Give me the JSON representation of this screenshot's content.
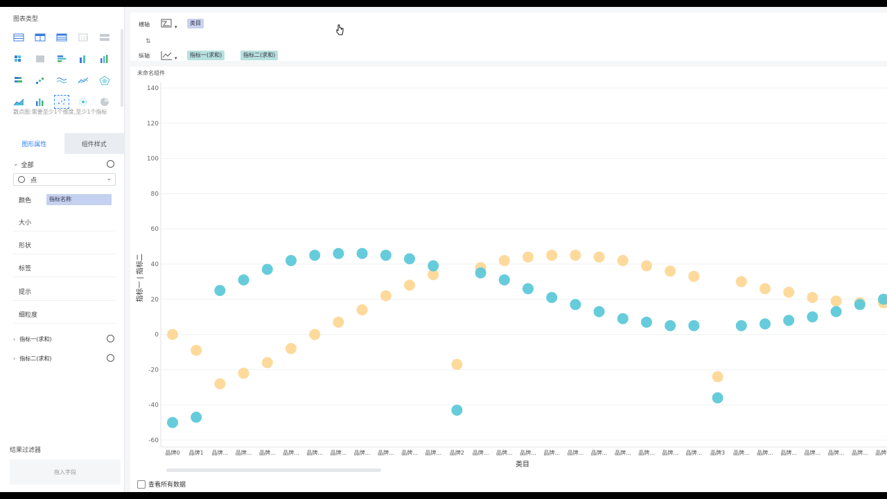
{
  "left_panel": {
    "chart_types_title": "图表类型",
    "chart_type_icons": [
      "table-icon",
      "crosstab-icon",
      "detail-table-icon",
      "kpi-icon",
      "card-icon",
      "heatmap-table-icon",
      "color-table-icon",
      "grouped-bar-icon",
      "column-icon",
      "multi-column-icon",
      "stacked-bar-icon",
      "step-line-icon",
      "wave-line-icon",
      "line-icon",
      "radar-icon",
      "area-icon",
      "combo-column-icon",
      "scatter-icon",
      "dot-cloud-icon",
      "pie-icon"
    ],
    "active_chart_type": "scatter-icon",
    "type_tip": "散点图:需要至少1个维度,至少1个指标",
    "tabs": [
      "图形属性",
      "组件样式"
    ],
    "all_label": "全部",
    "mark_type": "点",
    "color_label": "颜色",
    "color_field": "指标名称",
    "props": [
      "大小",
      "形状",
      "标签",
      "提示",
      "细粒度"
    ],
    "measures": [
      "指标一(求和)",
      "指标二(求和)"
    ],
    "filter_title": "结果过滤器",
    "drop_hint": "拖入字段"
  },
  "shelves": {
    "x_label": "横轴",
    "y_label": "纵轴",
    "x_field": "类目",
    "y_fields": [
      "指标一(求和)",
      "指标二(求和)"
    ]
  },
  "chart_card": {
    "title": "未命名组件",
    "show_all_label": "查看所有数据"
  },
  "colors": {
    "series1": "#5ec9d9",
    "series2": "#fdd897",
    "accent": "#3685f2"
  },
  "chart_data": {
    "type": "scatter",
    "title": "",
    "xlabel": "类目",
    "ylabel": "指标一 | 指标二",
    "ylim": [
      -60,
      140
    ],
    "yticks": [
      140,
      120,
      100,
      80,
      60,
      40,
      20,
      0,
      -20,
      -40,
      -60
    ],
    "categories": [
      "品牌0",
      "品牌1",
      "品牌...",
      "品牌...",
      "品牌...",
      "品牌...",
      "品牌...",
      "品牌...",
      "品牌...",
      "品牌...",
      "品牌...",
      "品牌...",
      "品牌2",
      "品牌...",
      "品牌...",
      "品牌...",
      "品牌...",
      "品牌...",
      "品牌...",
      "品牌...",
      "品牌...",
      "品牌...",
      "品牌...",
      "品牌3",
      "品牌...",
      "品牌...",
      "品牌...",
      "品牌...",
      "品牌...",
      "品牌...",
      "品牌..."
    ],
    "series": [
      {
        "name": "指标一(求和)",
        "values": [
          -50,
          -47,
          25,
          31,
          37,
          42,
          45,
          46,
          46,
          45,
          43,
          39,
          -43,
          35,
          31,
          26,
          21,
          17,
          13,
          9,
          7,
          5,
          5,
          -36,
          5,
          6,
          8,
          10,
          13,
          17,
          20
        ]
      },
      {
        "name": "指标二(求和)",
        "values": [
          0,
          -9,
          -28,
          -22,
          -16,
          -8,
          0,
          7,
          14,
          22,
          28,
          34,
          -17,
          38,
          42,
          44,
          45,
          45,
          44,
          42,
          39,
          36,
          33,
          -24,
          30,
          26,
          24,
          21,
          19,
          18,
          18
        ]
      }
    ]
  }
}
